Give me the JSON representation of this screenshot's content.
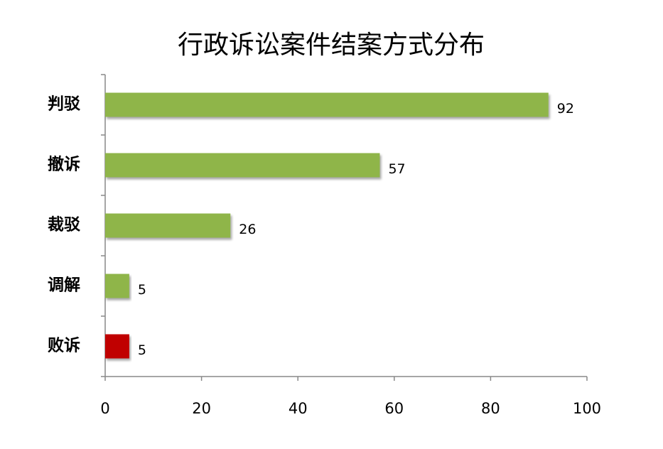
{
  "chart_data": {
    "type": "barh",
    "title": "行政诉讼案件结案方式分布",
    "categories": [
      "判驳",
      "撤诉",
      "裁驳",
      "调解",
      "败诉"
    ],
    "values": [
      92,
      57,
      26,
      5,
      5
    ],
    "colors": [
      "#8fb54a",
      "#8fb54a",
      "#8fb54a",
      "#8fb54a",
      "#c00000"
    ],
    "xlim": [
      0,
      100
    ],
    "xticks": [
      0,
      20,
      40,
      60,
      80,
      100
    ],
    "grid": false
  }
}
